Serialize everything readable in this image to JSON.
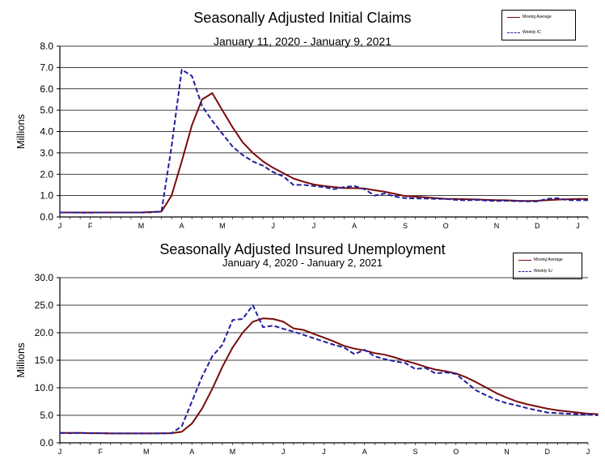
{
  "chart_data": [
    {
      "type": "line",
      "title": "Seasonally Adjusted Initial Claims",
      "subtitle": "January 11, 2020 - January 9, 2021",
      "ylabel": "Millions",
      "ylim": [
        0,
        8
      ],
      "yticks": [
        "0.0",
        "1.0",
        "2.0",
        "3.0",
        "4.0",
        "5.0",
        "6.0",
        "7.0",
        "8.0"
      ],
      "xlim": [
        0,
        52
      ],
      "xticks": [
        {
          "label": "J",
          "x": 0
        },
        {
          "label": "F",
          "x": 3
        },
        {
          "label": "M",
          "x": 8
        },
        {
          "label": "A",
          "x": 12
        },
        {
          "label": "M",
          "x": 16
        },
        {
          "label": "J",
          "x": 21
        },
        {
          "label": "J",
          "x": 25
        },
        {
          "label": "A",
          "x": 29
        },
        {
          "label": "S",
          "x": 34
        },
        {
          "label": "O",
          "x": 38
        },
        {
          "label": "N",
          "x": 43
        },
        {
          "label": "D",
          "x": 47
        },
        {
          "label": "J",
          "x": 51
        }
      ],
      "grid": true,
      "legend": "top-right",
      "series": [
        {
          "name": "Moving Average",
          "style": "solid",
          "color": "#7a0a0a",
          "values": [
            0.21,
            0.21,
            0.21,
            0.21,
            0.21,
            0.21,
            0.21,
            0.21,
            0.21,
            0.23,
            0.25,
            1.0,
            2.6,
            4.3,
            5.5,
            5.8,
            5.0,
            4.2,
            3.5,
            3.0,
            2.6,
            2.3,
            2.05,
            1.8,
            1.65,
            1.52,
            1.45,
            1.4,
            1.35,
            1.35,
            1.33,
            1.25,
            1.18,
            1.08,
            0.98,
            0.95,
            0.92,
            0.88,
            0.85,
            0.84,
            0.83,
            0.82,
            0.8,
            0.79,
            0.78,
            0.76,
            0.75,
            0.76,
            0.79,
            0.81,
            0.83,
            0.84,
            0.84
          ]
        },
        {
          "name": "Weekly IC",
          "style": "dashed",
          "color": "#1f1f9e",
          "values": [
            0.21,
            0.21,
            0.2,
            0.2,
            0.21,
            0.21,
            0.21,
            0.21,
            0.21,
            0.22,
            0.25,
            3.3,
            6.9,
            6.6,
            5.2,
            4.5,
            3.9,
            3.3,
            2.9,
            2.6,
            2.4,
            2.1,
            1.9,
            1.5,
            1.5,
            1.45,
            1.4,
            1.3,
            1.4,
            1.45,
            1.3,
            1.0,
            1.1,
            0.95,
            0.88,
            0.87,
            0.86,
            0.85,
            0.84,
            0.8,
            0.78,
            0.8,
            0.77,
            0.75,
            0.76,
            0.74,
            0.73,
            0.73,
            0.85,
            0.88,
            0.79,
            0.78,
            0.79
          ]
        }
      ]
    },
    {
      "type": "line",
      "title": "Seasonally Adjusted Insured Unemployment",
      "subtitle": "January 4, 2020 - January 2, 2021",
      "ylabel": "Millions",
      "ylim": [
        0,
        30
      ],
      "yticks": [
        "0.0",
        "5.0",
        "10.0",
        "15.0",
        "20.0",
        "25.0",
        "30.0"
      ],
      "xlim": [
        0,
        52
      ],
      "xticks": [
        {
          "label": "J",
          "x": 0
        },
        {
          "label": "F",
          "x": 4
        },
        {
          "label": "M",
          "x": 8.5
        },
        {
          "label": "A",
          "x": 13
        },
        {
          "label": "M",
          "x": 17
        },
        {
          "label": "J",
          "x": 22
        },
        {
          "label": "J",
          "x": 26
        },
        {
          "label": "A",
          "x": 30
        },
        {
          "label": "S",
          "x": 35
        },
        {
          "label": "O",
          "x": 39
        },
        {
          "label": "N",
          "x": 44
        },
        {
          "label": "D",
          "x": 48
        },
        {
          "label": "J",
          "x": 52
        }
      ],
      "grid": true,
      "legend": "top-right",
      "series": [
        {
          "name": "Moving Average",
          "style": "solid",
          "color": "#7a0a0a",
          "values": [
            1.8,
            1.8,
            1.8,
            1.75,
            1.75,
            1.7,
            1.7,
            1.7,
            1.7,
            1.7,
            1.72,
            1.75,
            2.0,
            3.5,
            6.2,
            9.8,
            13.8,
            17.3,
            20.0,
            22.0,
            22.6,
            22.5,
            22.0,
            20.8,
            20.5,
            19.8,
            19.1,
            18.4,
            17.6,
            17.1,
            16.8,
            16.3,
            16.0,
            15.5,
            14.9,
            14.4,
            13.8,
            13.3,
            13.0,
            12.6,
            11.9,
            11.0,
            10.0,
            9.0,
            8.2,
            7.5,
            7.0,
            6.6,
            6.2,
            5.9,
            5.7,
            5.5,
            5.3,
            5.2
          ]
        },
        {
          "name": "Weekly IU",
          "style": "dashed",
          "color": "#1f1f9e",
          "values": [
            1.8,
            1.75,
            1.8,
            1.75,
            1.75,
            1.7,
            1.7,
            1.7,
            1.7,
            1.7,
            1.7,
            1.75,
            3.0,
            7.5,
            12.0,
            15.7,
            17.8,
            22.3,
            22.5,
            25.0,
            21.0,
            21.3,
            20.7,
            20.2,
            19.6,
            19.0,
            18.4,
            17.8,
            17.3,
            16.1,
            16.9,
            15.7,
            15.2,
            14.8,
            14.5,
            13.4,
            13.6,
            12.6,
            12.8,
            12.5,
            11.0,
            9.5,
            8.6,
            7.8,
            7.2,
            6.8,
            6.3,
            5.9,
            5.5,
            5.4,
            5.3,
            5.2,
            5.1,
            5.0
          ]
        }
      ]
    }
  ]
}
